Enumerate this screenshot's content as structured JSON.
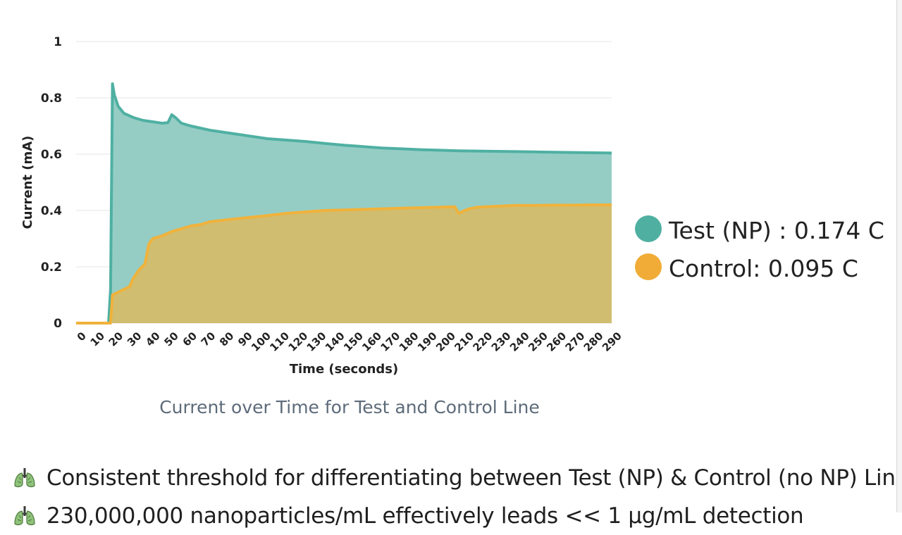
{
  "chart_data": {
    "type": "area",
    "title": "",
    "caption": "Current over Time for Test and Control Line",
    "xlabel": "Time (seconds)",
    "ylabel": "Current (mA)",
    "xlim": [
      0,
      280
    ],
    "ylim": [
      0,
      1
    ],
    "x_ticks": [
      "0",
      "10",
      "20",
      "30",
      "40",
      "50",
      "60",
      "70",
      "80",
      "90",
      "100",
      "110",
      "120",
      "130",
      "140",
      "150",
      "160",
      "170",
      "180",
      "190",
      "200",
      "210",
      "220",
      "230",
      "240",
      "250",
      "260",
      "270",
      "280",
      "290"
    ],
    "y_ticks": [
      "0",
      "0.2",
      "0.4",
      "0.6",
      "0.8",
      "1"
    ],
    "grid": true,
    "legend_position": "right",
    "series": [
      {
        "name": "Test (NP) : 0.174  C",
        "color": "#4fb0a2",
        "fill": "#95cdc5",
        "points": [
          [
            0,
            0
          ],
          [
            17,
            0
          ],
          [
            18,
            0.12
          ],
          [
            19,
            0.85
          ],
          [
            20,
            0.81
          ],
          [
            22,
            0.77
          ],
          [
            25,
            0.745
          ],
          [
            30,
            0.73
          ],
          [
            35,
            0.72
          ],
          [
            40,
            0.715
          ],
          [
            45,
            0.71
          ],
          [
            48,
            0.712
          ],
          [
            50,
            0.74
          ],
          [
            52,
            0.73
          ],
          [
            55,
            0.71
          ],
          [
            60,
            0.7
          ],
          [
            70,
            0.685
          ],
          [
            80,
            0.675
          ],
          [
            90,
            0.665
          ],
          [
            100,
            0.655
          ],
          [
            110,
            0.65
          ],
          [
            120,
            0.645
          ],
          [
            130,
            0.638
          ],
          [
            140,
            0.632
          ],
          [
            150,
            0.627
          ],
          [
            160,
            0.622
          ],
          [
            170,
            0.619
          ],
          [
            180,
            0.616
          ],
          [
            190,
            0.614
          ],
          [
            200,
            0.612
          ],
          [
            210,
            0.611
          ],
          [
            220,
            0.61
          ],
          [
            230,
            0.609
          ],
          [
            240,
            0.608
          ],
          [
            250,
            0.607
          ],
          [
            260,
            0.606
          ],
          [
            270,
            0.605
          ],
          [
            280,
            0.604
          ]
        ]
      },
      {
        "name": "Control: 0.095 C",
        "color": "#f0b23b",
        "fill": "#d4bc6c",
        "points": [
          [
            0,
            0
          ],
          [
            18,
            0
          ],
          [
            19,
            0.1
          ],
          [
            22,
            0.11
          ],
          [
            25,
            0.12
          ],
          [
            28,
            0.13
          ],
          [
            30,
            0.16
          ],
          [
            33,
            0.19
          ],
          [
            36,
            0.21
          ],
          [
            38,
            0.28
          ],
          [
            40,
            0.3
          ],
          [
            45,
            0.31
          ],
          [
            50,
            0.325
          ],
          [
            55,
            0.335
          ],
          [
            60,
            0.345
          ],
          [
            65,
            0.35
          ],
          [
            70,
            0.36
          ],
          [
            80,
            0.368
          ],
          [
            90,
            0.375
          ],
          [
            100,
            0.382
          ],
          [
            110,
            0.39
          ],
          [
            120,
            0.395
          ],
          [
            130,
            0.4
          ],
          [
            140,
            0.402
          ],
          [
            150,
            0.404
          ],
          [
            160,
            0.406
          ],
          [
            170,
            0.408
          ],
          [
            180,
            0.41
          ],
          [
            190,
            0.412
          ],
          [
            198,
            0.413
          ],
          [
            200,
            0.39
          ],
          [
            205,
            0.405
          ],
          [
            210,
            0.412
          ],
          [
            220,
            0.415
          ],
          [
            230,
            0.418
          ],
          [
            240,
            0.418
          ],
          [
            250,
            0.419
          ],
          [
            260,
            0.419
          ],
          [
            270,
            0.42
          ],
          [
            280,
            0.42
          ]
        ]
      }
    ]
  },
  "bullets": [
    {
      "icon": "lungs-icon",
      "text": "Consistent threshold for differentiating between Test (NP) & Control (no NP) Line"
    },
    {
      "icon": "lungs-icon",
      "text": "230,000,000 nanoparticles/mL effectively leads << 1 μg/mL detection"
    }
  ]
}
